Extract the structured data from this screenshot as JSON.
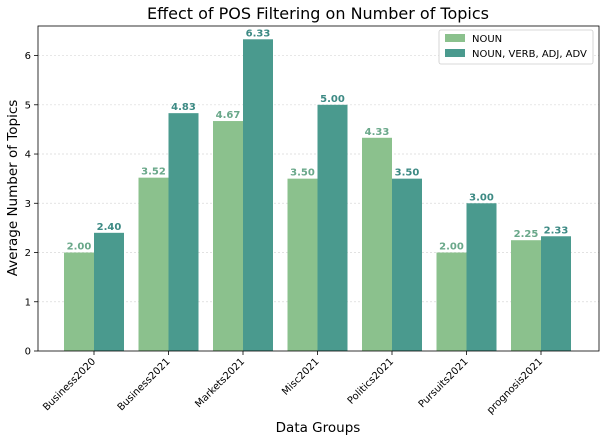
{
  "chart_data": {
    "type": "bar",
    "title": "Effect of POS Filtering on Number of Topics",
    "xlabel": "Data Groups",
    "ylabel": "Average Number of Topics",
    "categories": [
      "Business2020",
      "Business2021",
      "Markets2021",
      "Misc2021",
      "Politics2021",
      "Pursuits2021",
      "prognosis2021"
    ],
    "series": [
      {
        "name": "NOUN",
        "color": "#8bc18d",
        "label_color": "#6aa88a",
        "values": [
          2.0,
          3.52,
          4.67,
          3.5,
          4.33,
          2.0,
          2.25
        ],
        "labels": [
          "2.00",
          "3.52",
          "4.67",
          "3.50",
          "4.33",
          "2.00",
          "2.25"
        ]
      },
      {
        "name": "NOUN, VERB, ADJ, ADV",
        "color": "#4a9a8e",
        "label_color": "#3d8a84",
        "values": [
          2.4,
          4.83,
          6.33,
          5.0,
          3.5,
          3.0,
          2.33
        ],
        "labels": [
          "2.40",
          "4.83",
          "6.33",
          "5.00",
          "3.50",
          "3.00",
          "2.33"
        ]
      }
    ],
    "ylim": [
      0,
      6.6
    ],
    "yticks": [
      "0",
      "1",
      "2",
      "3",
      "4",
      "5",
      "6"
    ],
    "grid": "y-dashed",
    "legend_position": "top-right"
  }
}
